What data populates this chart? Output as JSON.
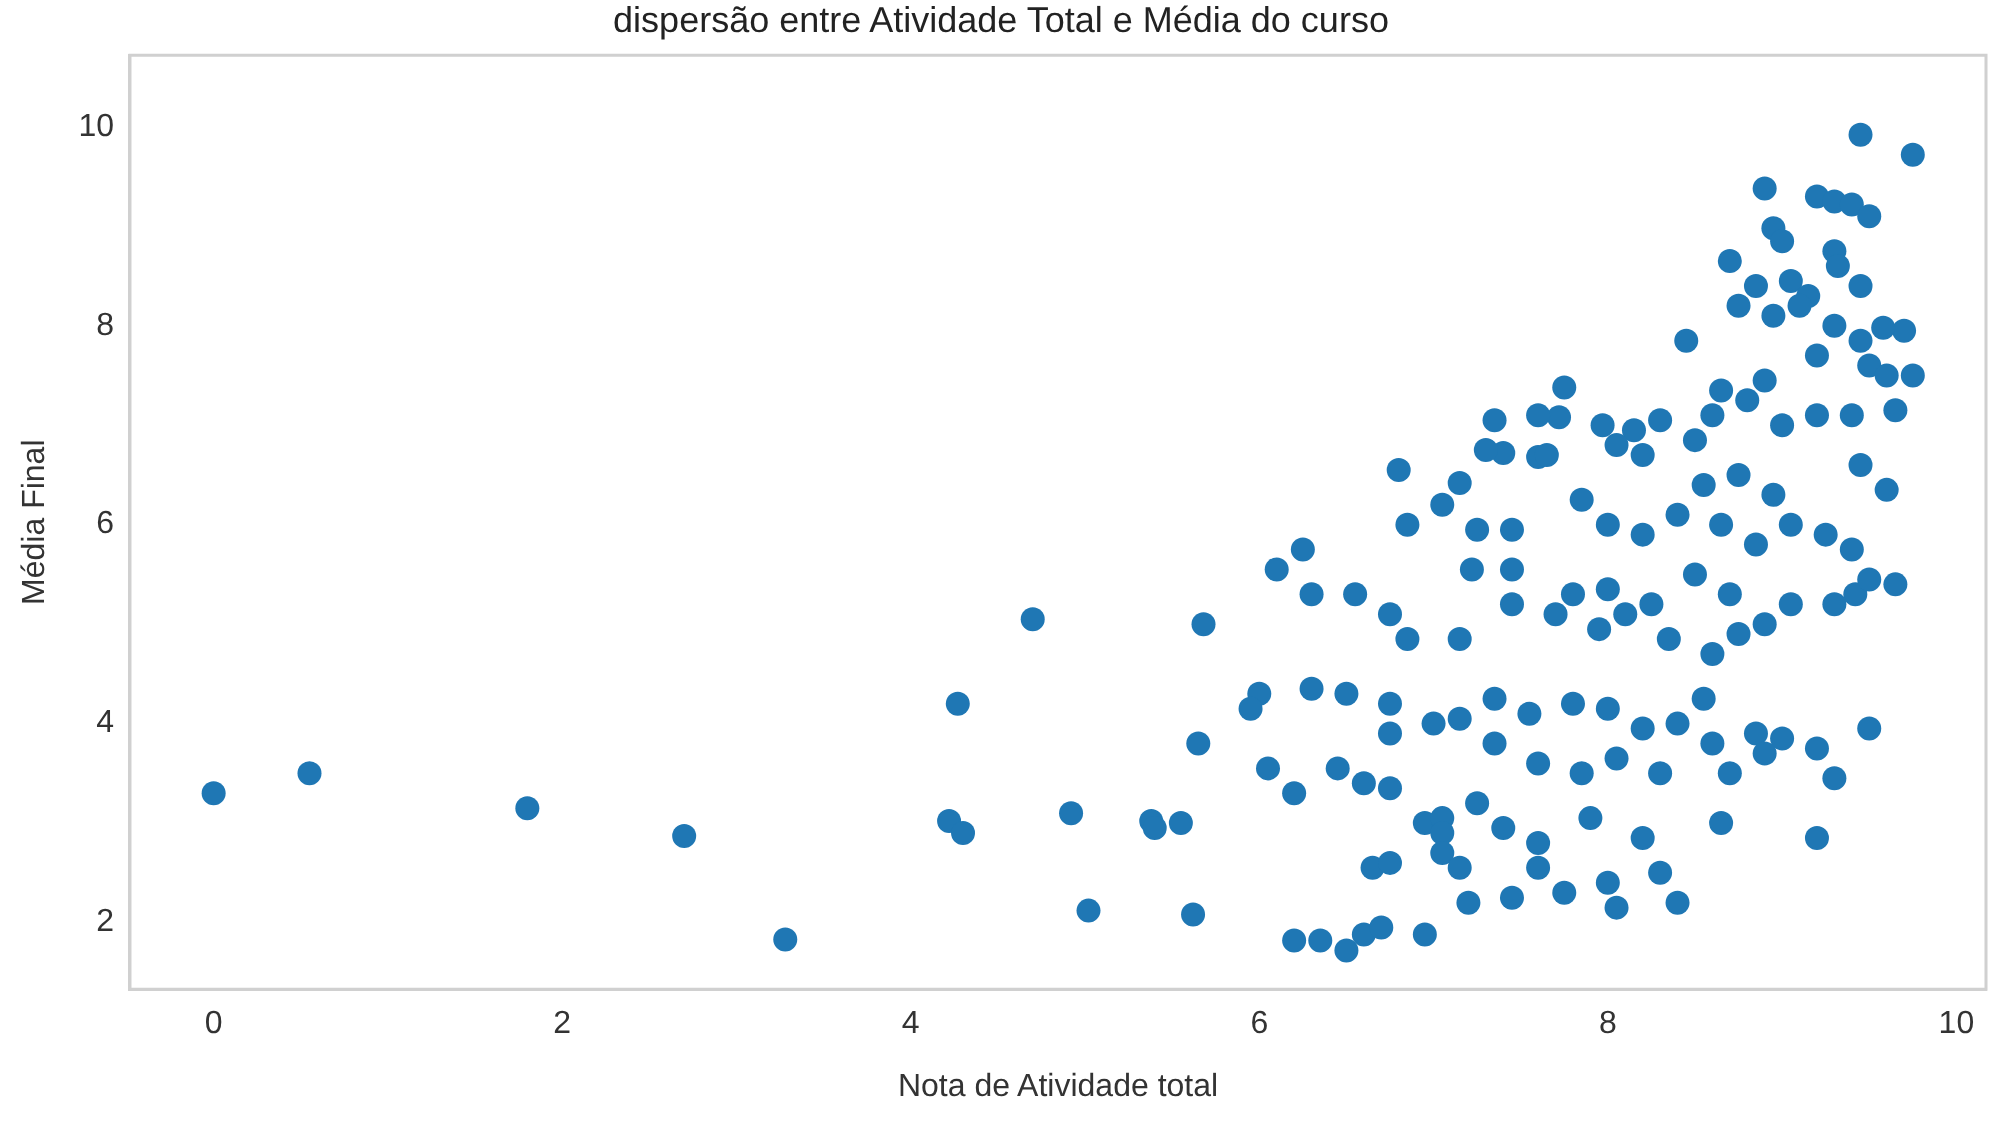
{
  "chart_data": {
    "type": "scatter",
    "title": "dispersão entre Atividade Total e Média do curso",
    "xlabel": "Nota de Atividade total",
    "ylabel": "Média Final",
    "xlim": [
      -0.48,
      10.17
    ],
    "ylim": [
      1.33,
      10.72
    ],
    "xticks": [
      0,
      2,
      4,
      6,
      8,
      10
    ],
    "yticks": [
      2,
      4,
      6,
      8,
      10
    ],
    "grid": false,
    "marker": "circle",
    "series": [
      {
        "color": "#1f77b4",
        "x": [
          0,
          0.55,
          1.8,
          2.7,
          3.28,
          4.22,
          4.3,
          4.27,
          4.7,
          4.92,
          5.02,
          5.38,
          5.4,
          5.55,
          5.62,
          5.68,
          5.65,
          9.45,
          9.75,
          8.9,
          9.2,
          9.3,
          9.4,
          9.5,
          8.95,
          9.0,
          9.3,
          9.32,
          8.7,
          8.85,
          9.05,
          9.15,
          9.45,
          8.75,
          8.95,
          9.1,
          9.3,
          9.45,
          9.7,
          9.58,
          8.45,
          9.2,
          9.5,
          9.6,
          9.75,
          8.9,
          8.65,
          8.8,
          9.2,
          9.4,
          9.65,
          7.75,
          7.72,
          7.35,
          7.6,
          7.97,
          8.15,
          8.3,
          8.5,
          8.6,
          9.0,
          7.4,
          7.6,
          7.65,
          7.3,
          8.05,
          8.2,
          9.45,
          6.8,
          7.15,
          7.05,
          8.55,
          8.75,
          8.95,
          9.6,
          6.85,
          7.25,
          7.22,
          7.45,
          7.45,
          7.45,
          7.85,
          8.0,
          8.2,
          8.4,
          8.65,
          8.85,
          9.05,
          9.25,
          9.4,
          9.42,
          9.5,
          9.65,
          9.3,
          9.05,
          8.9,
          8.7,
          8.5,
          8.25,
          8.0,
          7.8,
          7.7,
          7.95,
          8.1,
          8.35,
          8.6,
          8.75,
          6.1,
          6.25,
          6.3,
          6.55,
          6.75,
          6.85,
          7.15,
          6.0,
          6.3,
          6.5,
          5.95,
          6.05,
          6.2,
          6.75,
          6.75,
          7.0,
          7.15,
          7.35,
          7.55,
          7.8,
          8.0,
          8.2,
          8.4,
          8.55,
          8.6,
          8.85,
          9.0,
          9.2,
          9.5,
          7.35,
          7.6,
          7.85,
          8.05,
          8.3,
          8.7,
          8.9,
          9.3,
          6.45,
          6.6,
          6.75,
          6.95,
          7.05,
          7.25,
          7.4,
          7.6,
          7.9,
          8.2,
          8.65,
          9.2,
          6.65,
          6.75,
          7.05,
          7.05,
          7.6,
          7.45,
          7.75,
          8.0,
          8.3,
          8.4,
          8.05,
          6.2,
          6.35,
          6.5,
          6.6,
          6.7,
          6.95,
          7.2,
          7.15
        ],
        "values": [
          3.3,
          3.5,
          3.15,
          2.87,
          1.83,
          3.02,
          2.9,
          4.2,
          5.05,
          3.1,
          2.12,
          3.02,
          2.95,
          3.0,
          2.08,
          5.0,
          3.8,
          9.92,
          9.72,
          9.38,
          9.3,
          9.25,
          9.22,
          9.1,
          8.98,
          8.85,
          8.75,
          8.6,
          8.65,
          8.4,
          8.45,
          8.3,
          8.4,
          8.2,
          8.1,
          8.2,
          8.0,
          7.85,
          7.95,
          7.98,
          7.85,
          7.7,
          7.6,
          7.5,
          7.5,
          7.45,
          7.35,
          7.25,
          7.1,
          7.1,
          7.15,
          7.38,
          7.08,
          7.05,
          7.1,
          7.0,
          6.95,
          7.05,
          6.85,
          7.1,
          7.0,
          6.72,
          6.68,
          6.7,
          6.75,
          6.8,
          6.7,
          6.6,
          6.55,
          6.42,
          6.2,
          6.4,
          6.5,
          6.3,
          6.35,
          6.0,
          5.95,
          5.55,
          5.55,
          5.95,
          5.2,
          6.25,
          6.0,
          5.9,
          6.1,
          6.0,
          5.8,
          6.0,
          5.9,
          5.75,
          5.3,
          5.45,
          5.4,
          5.2,
          5.2,
          5.0,
          5.3,
          5.5,
          5.2,
          5.35,
          5.3,
          5.1,
          4.95,
          5.1,
          4.85,
          4.7,
          4.9,
          5.55,
          5.75,
          5.3,
          5.3,
          5.1,
          4.85,
          4.85,
          4.3,
          4.35,
          4.3,
          4.15,
          3.55,
          3.3,
          4.2,
          3.9,
          4.0,
          4.05,
          4.25,
          4.1,
          4.2,
          4.15,
          3.95,
          4.0,
          4.25,
          3.8,
          3.9,
          3.85,
          3.75,
          3.95,
          3.8,
          3.6,
          3.5,
          3.65,
          3.5,
          3.5,
          3.7,
          3.45,
          3.55,
          3.4,
          3.35,
          3.0,
          3.05,
          3.2,
          2.95,
          2.8,
          3.05,
          2.85,
          3.0,
          2.85,
          2.55,
          2.6,
          2.9,
          2.7,
          2.55,
          2.25,
          2.3,
          2.4,
          2.5,
          2.2,
          2.15,
          1.82,
          1.82,
          1.72,
          1.88,
          1.95,
          1.88,
          2.2,
          2.55
        ]
      }
    ]
  }
}
